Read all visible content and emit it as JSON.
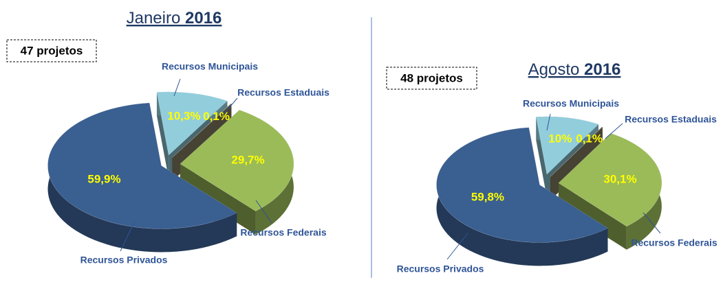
{
  "chart_data": [
    {
      "type": "pie3d",
      "title": "Janeiro 2016",
      "annotation": "47 projetos",
      "categories": [
        "Recursos Municipais",
        "Recursos Estaduais",
        "Recursos Federais",
        "Recursos Privados"
      ],
      "values": [
        10.3,
        0.1,
        29.7,
        59.9
      ],
      "value_labels": [
        "10,3%",
        "0,1%",
        "29,7%",
        "59,9%"
      ],
      "colors": [
        "#92cddc",
        "#8c8468",
        "#9bbb59",
        "#3a5f91"
      ]
    },
    {
      "type": "pie3d",
      "title": "Agosto 2016",
      "annotation": "48 projetos",
      "categories": [
        "Recursos Municipais",
        "Recursos Estaduais",
        "Recursos Federais",
        "Recursos Privados"
      ],
      "values": [
        10,
        0.1,
        30.1,
        59.8
      ],
      "value_labels": [
        "10%",
        "0,1%",
        "30,1%",
        "59,8%"
      ],
      "colors": [
        "#92cddc",
        "#8c8468",
        "#9bbb59",
        "#3a5f91"
      ]
    }
  ]
}
